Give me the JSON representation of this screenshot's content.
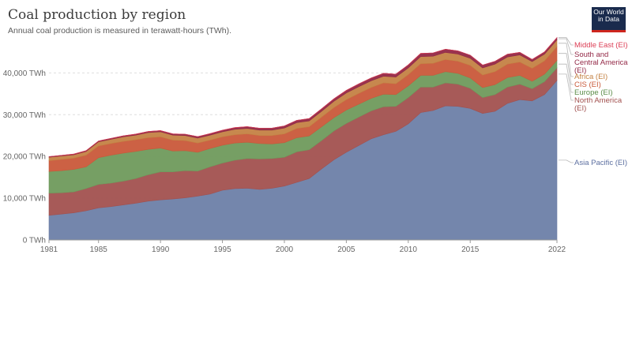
{
  "header": {
    "title": "Coal production by region",
    "subtitle": "Annual coal production is measured in terawatt-hours (TWh).",
    "logo_line1": "Our World",
    "logo_line2": "in Data"
  },
  "chart_data": {
    "type": "area",
    "stacked": true,
    "unit": "TWh",
    "x": [
      1981,
      1982,
      1983,
      1984,
      1985,
      1986,
      1987,
      1988,
      1989,
      1990,
      1991,
      1992,
      1993,
      1994,
      1995,
      1996,
      1997,
      1998,
      1999,
      2000,
      2001,
      2002,
      2003,
      2004,
      2005,
      2006,
      2007,
      2008,
      2009,
      2010,
      2011,
      2012,
      2013,
      2014,
      2015,
      2016,
      2017,
      2018,
      2019,
      2020,
      2021,
      2022
    ],
    "x_ticks": [
      "1981",
      "1985",
      "1990",
      "1995",
      "2000",
      "2005",
      "2010",
      "2015",
      "2022"
    ],
    "y_ticks": [
      "0 TWh",
      "10,000 TWh",
      "20,000 TWh",
      "30,000 TWh",
      "40,000 TWh"
    ],
    "ylim": [
      0,
      48000
    ],
    "grid": true,
    "legend_position": "right, labels at series ends",
    "series": [
      {
        "name": "Asia Pacific (EI)",
        "color": "#6d7fa8",
        "values": [
          5900,
          6200,
          6500,
          7000,
          7700,
          8000,
          8400,
          8800,
          9300,
          9600,
          9800,
          10100,
          10500,
          11000,
          11900,
          12300,
          12400,
          12100,
          12400,
          12900,
          13800,
          14700,
          17000,
          19200,
          21000,
          22600,
          24200,
          25200,
          26000,
          27800,
          30500,
          31000,
          32100,
          32000,
          31500,
          30300,
          30800,
          32700,
          33600,
          33300,
          34800,
          38200
        ]
      },
      {
        "name": "North America (EI)",
        "color": "#a2514f",
        "values": [
          5300,
          5100,
          5000,
          5300,
          5600,
          5600,
          5700,
          5900,
          6300,
          6700,
          6500,
          6500,
          6000,
          6500,
          6500,
          6800,
          7100,
          7300,
          7100,
          6900,
          7300,
          6900,
          6800,
          6900,
          6900,
          6800,
          6700,
          6700,
          6000,
          6300,
          6100,
          5600,
          5500,
          5300,
          4800,
          3800,
          4000,
          3900,
          3700,
          2900,
          3100,
          3000
        ]
      },
      {
        "name": "Europe (EI)",
        "color": "#6f9a5c",
        "values": [
          5200,
          5300,
          5400,
          5200,
          6400,
          6700,
          6700,
          6500,
          6100,
          5700,
          5000,
          4800,
          4500,
          4400,
          4300,
          4100,
          3900,
          3700,
          3500,
          3500,
          3400,
          3300,
          3300,
          3200,
          3200,
          3100,
          3000,
          3000,
          2800,
          2800,
          2800,
          2800,
          2700,
          2600,
          2500,
          2400,
          2400,
          2300,
          2100,
          1800,
          1800,
          1800
        ]
      },
      {
        "name": "CIS (EI)",
        "color": "#c9593a",
        "values": [
          2600,
          2700,
          2700,
          2800,
          2800,
          2800,
          2800,
          2800,
          2800,
          2700,
          2600,
          2400,
          2200,
          2000,
          2000,
          2000,
          2000,
          1900,
          2000,
          2100,
          2200,
          2200,
          2300,
          2400,
          2500,
          2600,
          2600,
          2700,
          2600,
          2700,
          2800,
          2900,
          2900,
          2900,
          3000,
          3000,
          3100,
          3200,
          3200,
          3100,
          3200,
          3300
        ]
      },
      {
        "name": "Africa (EI)",
        "color": "#c48244",
        "values": [
          800,
          800,
          800,
          900,
          1000,
          1000,
          1100,
          1100,
          1200,
          1200,
          1200,
          1200,
          1200,
          1200,
          1200,
          1300,
          1300,
          1300,
          1300,
          1400,
          1400,
          1400,
          1400,
          1500,
          1600,
          1600,
          1600,
          1600,
          1600,
          1600,
          1700,
          1700,
          1700,
          1700,
          1700,
          1700,
          1800,
          1700,
          1700,
          1600,
          1600,
          1600
        ]
      },
      {
        "name": "South and Central America (EI)",
        "color": "#932846",
        "values": [
          150,
          160,
          170,
          180,
          200,
          220,
          230,
          250,
          270,
          290,
          300,
          320,
          340,
          360,
          380,
          400,
          430,
          450,
          470,
          500,
          550,
          560,
          580,
          600,
          620,
          660,
          680,
          700,
          700,
          720,
          760,
          780,
          780,
          770,
          740,
          680,
          680,
          660,
          620,
          520,
          540,
          540
        ]
      },
      {
        "name": "Middle East (EI)",
        "color": "#dc3e55",
        "values": [
          5,
          5,
          5,
          5,
          5,
          5,
          5,
          5,
          5,
          5,
          5,
          5,
          5,
          5,
          5,
          5,
          5,
          5,
          5,
          5,
          5,
          5,
          5,
          5,
          5,
          5,
          5,
          5,
          5,
          5,
          5,
          5,
          5,
          5,
          5,
          5,
          5,
          5,
          5,
          5,
          5,
          5
        ]
      }
    ]
  },
  "legend_labels": [
    {
      "lines": [
        "Middle East (EI)"
      ],
      "color": "#dc3e55"
    },
    {
      "lines": [
        "South and",
        "Central America",
        "(EI)"
      ],
      "color": "#932846"
    },
    {
      "lines": [
        "Africa (EI)"
      ],
      "color": "#c48244"
    },
    {
      "lines": [
        "CIS (EI)"
      ],
      "color": "#c9593a"
    },
    {
      "lines": [
        "Europe (EI)"
      ],
      "color": "#5a8c48"
    },
    {
      "lines": [
        "North America",
        "(EI)"
      ],
      "color": "#a2514f"
    },
    {
      "lines": [
        "Asia Pacific (EI)"
      ],
      "color": "#5c6fa0"
    }
  ]
}
